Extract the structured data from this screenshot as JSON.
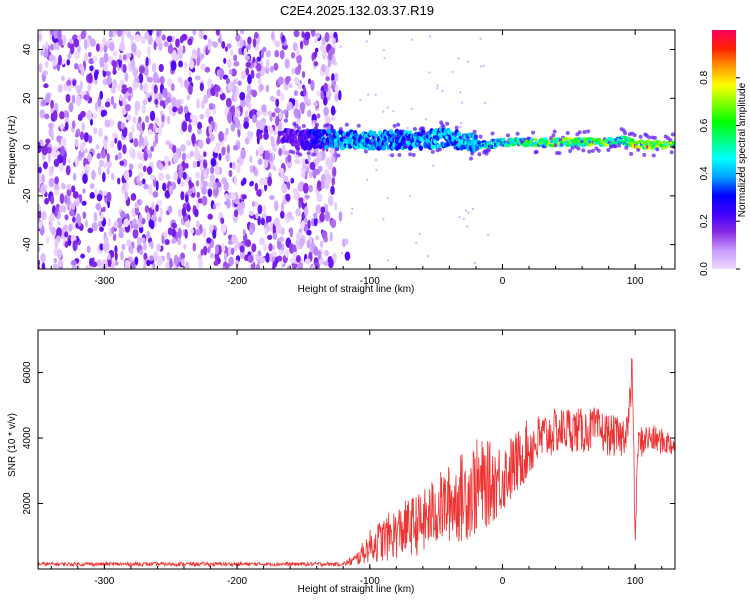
{
  "title": "C2E4.2025.132.03.37.R19",
  "chart_data": [
    {
      "type": "heatmap",
      "xlabel": "Height of straight line (km)",
      "ylabel": "Frequency (Hz)",
      "xlim": [
        -350,
        130
      ],
      "ylim": [
        -50,
        48
      ],
      "x_ticks": [
        -300,
        -200,
        -100,
        0,
        100
      ],
      "y_ticks": [
        -40,
        -20,
        0,
        20,
        40
      ],
      "colorbar": {
        "label": "Normalized spectral amplitude",
        "range": [
          0,
          1
        ],
        "ticks": [
          "0.0",
          "0.2",
          "0.4",
          "0.6",
          "0.8"
        ],
        "colormap": [
          "#f0d9ff",
          "#c79bff",
          "#8a2be2",
          "#4000ff",
          "#0000ff",
          "#00a0ff",
          "#00ffff",
          "#00ff80",
          "#00ff00",
          "#80ff00",
          "#ffff00",
          "#ff9900",
          "#ff2000",
          "#ff0060"
        ]
      },
      "noise_region_x": [
        -350,
        -125
      ],
      "signal_band": [
        {
          "x": -165,
          "y": 6,
          "amp": 0.25
        },
        {
          "x": -155,
          "y": 3,
          "amp": 0.25
        },
        {
          "x": -120,
          "y": 3,
          "amp": 0.5
        },
        {
          "x": -100,
          "y": 3,
          "amp": 0.5
        },
        {
          "x": -80,
          "y": 3,
          "amp": 0.45
        },
        {
          "x": -60,
          "y": 3,
          "amp": 0.5
        },
        {
          "x": -40,
          "y": 4,
          "amp": 0.5
        },
        {
          "x": -20,
          "y": 1,
          "amp": 0.5
        },
        {
          "x": -10,
          "y": 1,
          "amp": 0.55
        },
        {
          "x": 0,
          "y": 2,
          "amp": 0.6
        },
        {
          "x": 20,
          "y": 2,
          "amp": 0.7
        },
        {
          "x": 40,
          "y": 2,
          "amp": 0.75
        },
        {
          "x": 60,
          "y": 2,
          "amp": 0.75
        },
        {
          "x": 80,
          "y": 2,
          "amp": 0.75
        },
        {
          "x": 90,
          "y": 3,
          "amp": 0.55
        },
        {
          "x": 100,
          "y": 1,
          "amp": 0.85
        },
        {
          "x": 120,
          "y": 1,
          "amp": 0.8
        },
        {
          "x": 130,
          "y": 1,
          "amp": 0.8
        }
      ]
    },
    {
      "type": "line",
      "xlabel": "Height of straight line (km)",
      "ylabel": "SNR (10 * v/v)",
      "xlim": [
        -350,
        130
      ],
      "ylim": [
        0,
        7300
      ],
      "x_ticks": [
        -300,
        -200,
        -100,
        0,
        100
      ],
      "y_ticks": [
        2000,
        4000,
        6000
      ],
      "color": "#ee3333",
      "series": [
        {
          "x": [
            -350,
            -300,
            -250,
            -200,
            -150,
            -120,
            -110,
            -100,
            -90,
            -80,
            -70,
            -60,
            -50,
            -40,
            -30,
            -20,
            -10,
            0,
            10,
            20,
            30,
            40,
            50,
            60,
            70,
            80,
            90,
            95,
            98,
            100,
            102,
            105,
            110,
            120,
            130
          ],
          "values": [
            150,
            150,
            150,
            150,
            150,
            150,
            300,
            700,
            900,
            1100,
            1300,
            1400,
            1800,
            2000,
            2200,
            2500,
            2600,
            2800,
            3200,
            3700,
            4000,
            4200,
            4300,
            4200,
            4300,
            4100,
            4000,
            4500,
            6000,
            700,
            3800,
            3900,
            4000,
            3900,
            3800
          ],
          "noise": [
            60,
            60,
            60,
            60,
            60,
            60,
            200,
            500,
            700,
            800,
            900,
            1000,
            1100,
            1200,
            1400,
            1500,
            1300,
            1100,
            1000,
            900,
            800,
            700,
            700,
            700,
            650,
            650,
            600,
            700,
            900,
            200,
            500,
            500,
            450,
            400,
            400
          ]
        }
      ]
    }
  ]
}
